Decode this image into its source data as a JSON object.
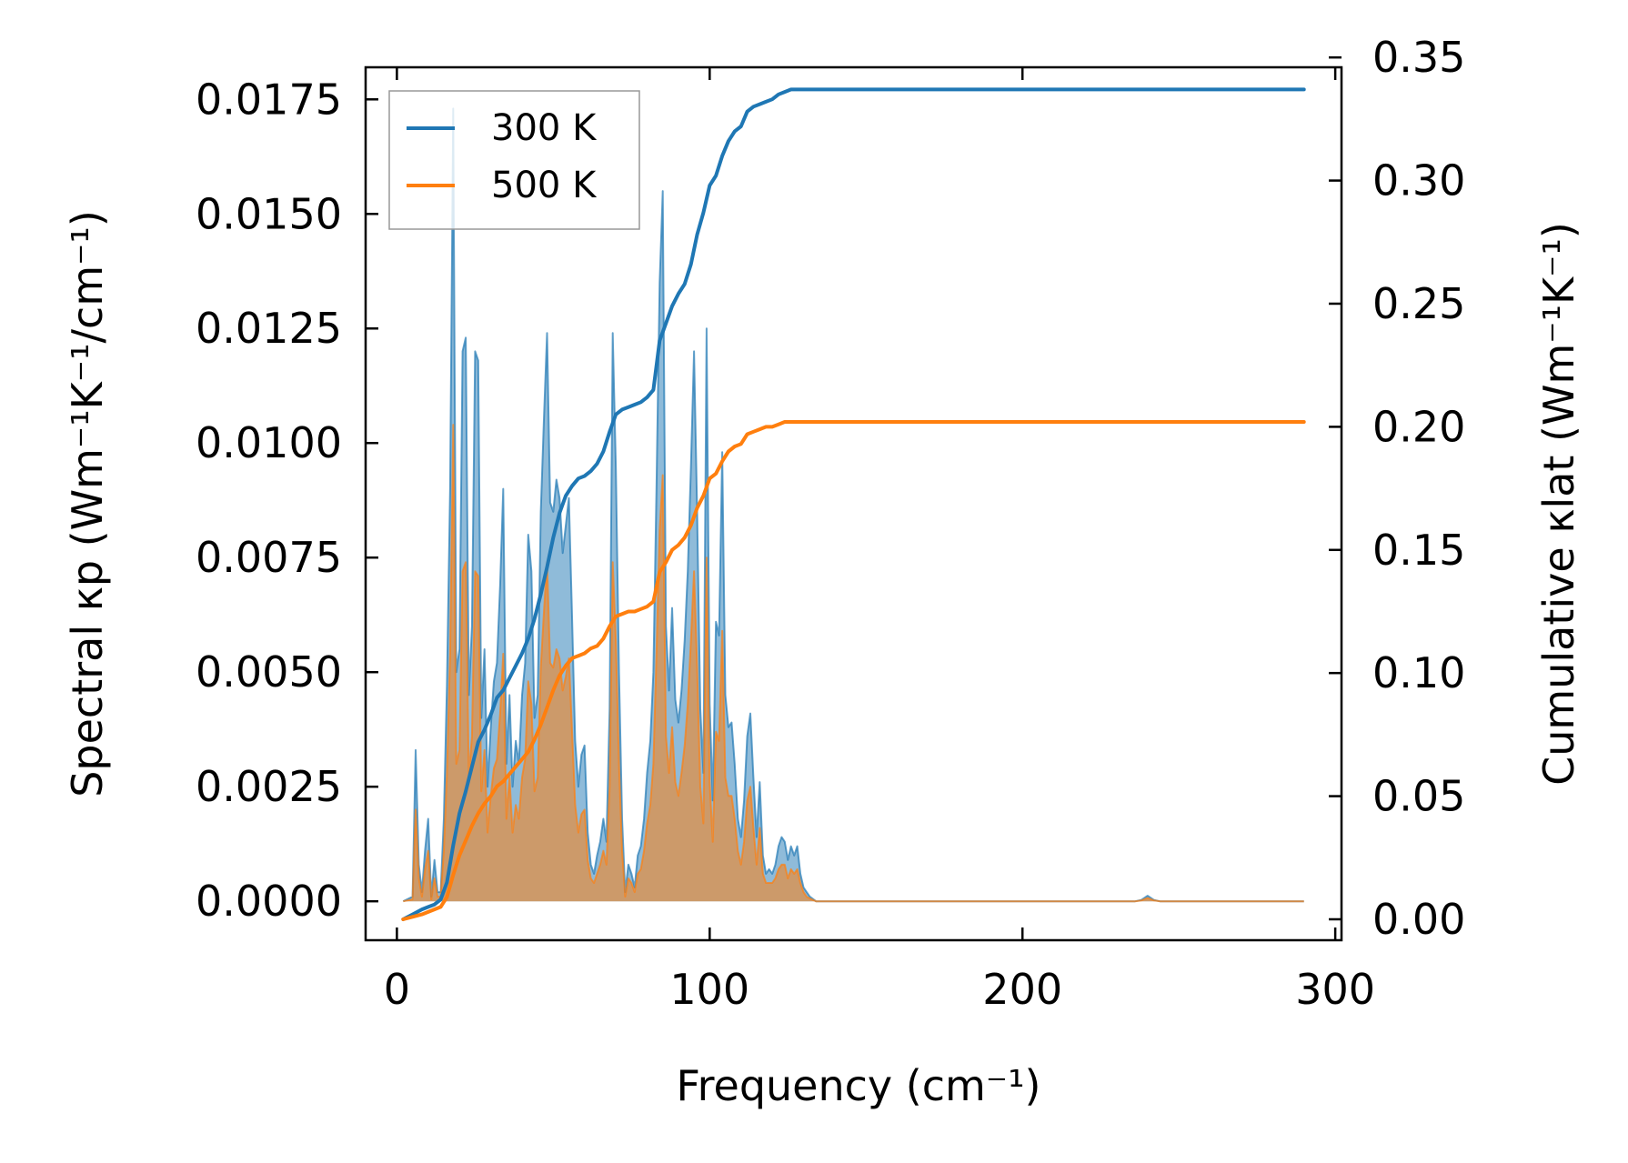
{
  "chart_data": {
    "type": "line",
    "xlabel": "Frequency (cm⁻¹)",
    "ylabel_left": "Spectral κp (Wm⁻¹K⁻¹/cm⁻¹)",
    "ylabel_right": "Cumulative κlat (Wm⁻¹K⁻¹)",
    "xlim": [
      -10,
      302
    ],
    "ylim_left": [
      -0.00085,
      0.0182
    ],
    "ylim_right": [
      -0.0085,
      0.346
    ],
    "x_ticks": [
      "0",
      "100",
      "200",
      "300"
    ],
    "x_tick_values": [
      0,
      100,
      200,
      300
    ],
    "y_left_ticks": [
      "0.0000",
      "0.0025",
      "0.0050",
      "0.0075",
      "0.0100",
      "0.0125",
      "0.0150",
      "0.0175"
    ],
    "y_left_tick_values": [
      0,
      0.0025,
      0.005,
      0.0075,
      0.01,
      0.0125,
      0.015,
      0.0175
    ],
    "y_right_ticks": [
      "0.00",
      "0.05",
      "0.10",
      "0.15",
      "0.20",
      "0.25",
      "0.30",
      "0.35"
    ],
    "y_right_tick_values": [
      0,
      0.05,
      0.1,
      0.15,
      0.2,
      0.25,
      0.3,
      0.35
    ],
    "legend": {
      "location": "top-left",
      "entries": [
        "300 K",
        "500 K"
      ]
    },
    "colors": {
      "300K": "#1f77b4",
      "500K": "#ff7f0e",
      "overlap_fill": "#c49a6c"
    },
    "spectral": {
      "x": [
        2,
        5,
        6,
        7,
        8,
        9,
        10,
        11,
        12,
        13,
        14,
        15,
        16,
        17,
        18,
        19,
        20,
        21,
        22,
        23,
        24,
        25,
        26,
        27,
        28,
        29,
        30,
        31,
        32,
        33,
        34,
        35,
        36,
        37,
        38,
        39,
        40,
        41,
        42,
        43,
        44,
        45,
        46,
        47,
        48,
        49,
        50,
        51,
        52,
        53,
        54,
        55,
        56,
        57,
        58,
        59,
        60,
        61,
        62,
        63,
        64,
        65,
        66,
        67,
        68,
        69,
        70,
        71,
        72,
        73,
        74,
        75,
        76,
        77,
        78,
        79,
        80,
        81,
        82,
        83,
        84,
        85,
        86,
        87,
        88,
        89,
        90,
        91,
        92,
        93,
        94,
        95,
        96,
        97,
        98,
        99,
        100,
        101,
        102,
        103,
        104,
        105,
        106,
        107,
        108,
        109,
        110,
        111,
        112,
        113,
        114,
        115,
        116,
        117,
        118,
        119,
        120,
        121,
        122,
        123,
        124,
        125,
        126,
        127,
        128,
        129,
        130,
        131,
        132,
        133,
        134,
        135,
        140,
        200,
        236,
        238,
        240,
        242,
        244,
        246,
        290
      ],
      "series": [
        {
          "name": "300 K",
          "values": [
            0,
            0.0001,
            0.0033,
            0.0008,
            0.0002,
            0.0011,
            0.0018,
            0.0001,
            0.0009,
            0.0002,
            0.0002,
            0.0018,
            0.0047,
            0.009,
            0.0173,
            0.005,
            0.0055,
            0.012,
            0.0123,
            0.0045,
            0.006,
            0.012,
            0.0118,
            0.004,
            0.0055,
            0.0025,
            0.0038,
            0.0048,
            0.0052,
            0.0069,
            0.009,
            0.003,
            0.0045,
            0.0025,
            0.0035,
            0.003,
            0.0045,
            0.0052,
            0.008,
            0.0072,
            0.004,
            0.0045,
            0.0085,
            0.0105,
            0.0124,
            0.0087,
            0.0085,
            0.0092,
            0.0088,
            0.0076,
            0.0082,
            0.0088,
            0.0062,
            0.0035,
            0.0025,
            0.0032,
            0.0034,
            0.0015,
            0.0008,
            0.0006,
            0.001,
            0.0013,
            0.0018,
            0.0013,
            0.0042,
            0.0124,
            0.0095,
            0.005,
            0.0018,
            0.0002,
            0.0008,
            0.0006,
            0.0003,
            0.001,
            0.0012,
            0.0018,
            0.0028,
            0.0035,
            0.005,
            0.009,
            0.0135,
            0.0155,
            0.006,
            0.0046,
            0.0064,
            0.0044,
            0.0039,
            0.0046,
            0.0057,
            0.0072,
            0.0095,
            0.012,
            0.0085,
            0.0042,
            0.0028,
            0.0125,
            0.0043,
            0.0022,
            0.0061,
            0.0058,
            0.0098,
            0.0045,
            0.0038,
            0.0039,
            0.003,
            0.0018,
            0.0014,
            0.0022,
            0.0036,
            0.0041,
            0.0027,
            0.0014,
            0.0026,
            0.001,
            0.0006,
            0.0007,
            0.0006,
            0.0008,
            0.0012,
            0.0014,
            0.0013,
            0.0009,
            0.0012,
            0.001,
            0.0012,
            0.0006,
            0.0003,
            0.0002,
            0.0001,
            5e-05,
            0,
            0,
            0,
            0,
            0,
            3e-05,
            0.00012,
            3e-05,
            0,
            0,
            0
          ]
        },
        {
          "name": "500 K",
          "values": [
            0,
            4e-05,
            0.002,
            0.0005,
            0.0001,
            0.0007,
            0.0011,
            4e-05,
            0.0005,
            0.0001,
            0.0001,
            0.0011,
            0.0028,
            0.0054,
            0.0104,
            0.003,
            0.0033,
            0.0072,
            0.0074,
            0.0027,
            0.0036,
            0.0072,
            0.0071,
            0.0024,
            0.0033,
            0.0015,
            0.0023,
            0.0029,
            0.0031,
            0.0041,
            0.0054,
            0.0018,
            0.0027,
            0.0015,
            0.0021,
            0.0018,
            0.0027,
            0.0031,
            0.0048,
            0.0043,
            0.0024,
            0.0027,
            0.0051,
            0.0063,
            0.0074,
            0.0052,
            0.0051,
            0.0055,
            0.0053,
            0.0046,
            0.0049,
            0.0053,
            0.0037,
            0.0021,
            0.0015,
            0.0019,
            0.002,
            0.0009,
            0.0005,
            0.0004,
            0.0006,
            0.0008,
            0.0011,
            0.0008,
            0.0025,
            0.0074,
            0.0057,
            0.003,
            0.0011,
            0.0001,
            0.0005,
            0.0004,
            0.0002,
            0.0006,
            0.0007,
            0.0011,
            0.0017,
            0.0021,
            0.003,
            0.0054,
            0.0081,
            0.0093,
            0.0036,
            0.0028,
            0.0038,
            0.0026,
            0.0023,
            0.0028,
            0.0034,
            0.0043,
            0.0057,
            0.0072,
            0.0051,
            0.0025,
            0.0017,
            0.0075,
            0.0026,
            0.0013,
            0.0037,
            0.0035,
            0.0059,
            0.0027,
            0.0023,
            0.0023,
            0.0018,
            0.0011,
            0.0008,
            0.0013,
            0.0022,
            0.0025,
            0.0016,
            0.0008,
            0.0016,
            0.0006,
            0.0004,
            0.0004,
            0.0004,
            0.0005,
            0.0007,
            0.0008,
            0.0008,
            0.0005,
            0.0007,
            0.0006,
            0.0007,
            0.0004,
            0.0002,
            0.0001,
            6e-05,
            3e-05,
            0,
            0,
            0,
            0,
            0,
            2e-05,
            7e-05,
            2e-05,
            0,
            0,
            0
          ]
        }
      ]
    },
    "cumulative": {
      "x": [
        2,
        5,
        8,
        10,
        12,
        14,
        16,
        18,
        20,
        22,
        24,
        26,
        28,
        30,
        32,
        34,
        36,
        38,
        40,
        42,
        44,
        46,
        48,
        50,
        52,
        54,
        56,
        58,
        60,
        62,
        64,
        66,
        68,
        70,
        72,
        74,
        76,
        78,
        80,
        82,
        84,
        86,
        88,
        90,
        92,
        94,
        96,
        98,
        100,
        102,
        104,
        106,
        108,
        110,
        112,
        114,
        116,
        118,
        120,
        122,
        124,
        126,
        128,
        130,
        135,
        140,
        200,
        290
      ],
      "series": [
        {
          "name": "300 K",
          "values": [
            0,
            0.002,
            0.004,
            0.005,
            0.006,
            0.008,
            0.015,
            0.03,
            0.043,
            0.052,
            0.062,
            0.072,
            0.077,
            0.083,
            0.09,
            0.093,
            0.098,
            0.103,
            0.108,
            0.114,
            0.122,
            0.132,
            0.143,
            0.155,
            0.165,
            0.172,
            0.176,
            0.179,
            0.18,
            0.182,
            0.185,
            0.19,
            0.198,
            0.205,
            0.207,
            0.208,
            0.209,
            0.21,
            0.212,
            0.215,
            0.235,
            0.242,
            0.249,
            0.254,
            0.258,
            0.266,
            0.278,
            0.287,
            0.298,
            0.302,
            0.31,
            0.316,
            0.32,
            0.322,
            0.328,
            0.33,
            0.331,
            0.332,
            0.333,
            0.335,
            0.336,
            0.337,
            0.337,
            0.337,
            0.337,
            0.337,
            0.337,
            0.337
          ]
        },
        {
          "name": "500 K",
          "values": [
            0,
            0.001,
            0.002,
            0.003,
            0.004,
            0.005,
            0.009,
            0.018,
            0.026,
            0.032,
            0.038,
            0.043,
            0.047,
            0.05,
            0.054,
            0.056,
            0.059,
            0.062,
            0.065,
            0.068,
            0.073,
            0.079,
            0.086,
            0.093,
            0.099,
            0.103,
            0.106,
            0.107,
            0.108,
            0.11,
            0.111,
            0.114,
            0.119,
            0.123,
            0.124,
            0.125,
            0.125,
            0.126,
            0.127,
            0.129,
            0.141,
            0.145,
            0.15,
            0.152,
            0.155,
            0.16,
            0.167,
            0.172,
            0.179,
            0.181,
            0.186,
            0.19,
            0.192,
            0.193,
            0.197,
            0.198,
            0.199,
            0.2,
            0.2,
            0.201,
            0.202,
            0.202,
            0.202,
            0.202,
            0.202,
            0.202,
            0.202,
            0.202
          ]
        }
      ]
    }
  }
}
